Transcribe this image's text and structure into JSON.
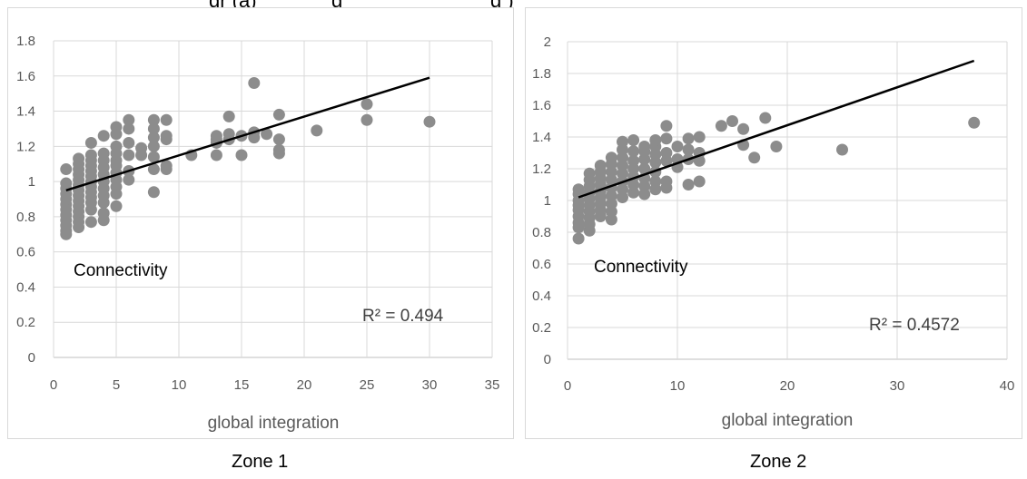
{
  "clipped_heading": {
    "left_fragment": "gr (a)",
    "right_fragment": "g",
    "right_fragment_2": "g )"
  },
  "captions": {
    "left": "Zone 1",
    "right": "Zone 2"
  },
  "colors": {
    "points": "#8c8c8c",
    "trend": "#000000",
    "grid": "#d9d9d9",
    "axis": "#bfbfbf"
  },
  "chart_data": [
    {
      "type": "scatter",
      "title": "",
      "xlabel": "global integration",
      "ylabel": "",
      "inset_label": "Connectivity",
      "r2_label": "R² = 0.494",
      "xlim": [
        0,
        35
      ],
      "ylim": [
        0,
        1.8
      ],
      "x_ticks": [
        0,
        5,
        10,
        15,
        20,
        25,
        30,
        35
      ],
      "y_ticks": [
        0,
        0.2,
        0.4,
        0.6,
        0.8,
        1,
        1.2,
        1.4,
        1.6,
        1.8
      ],
      "grid": true,
      "trendline": {
        "x": [
          1,
          30
        ],
        "y": [
          0.95,
          1.59
        ]
      },
      "points": [
        [
          1,
          0.7
        ],
        [
          1,
          0.72
        ],
        [
          1,
          0.75
        ],
        [
          1,
          0.78
        ],
        [
          1,
          0.81
        ],
        [
          1,
          0.84
        ],
        [
          1,
          0.87
        ],
        [
          1,
          0.9
        ],
        [
          1,
          0.93
        ],
        [
          1,
          0.96
        ],
        [
          1,
          0.99
        ],
        [
          1,
          1.07
        ],
        [
          2,
          0.74
        ],
        [
          2,
          0.77
        ],
        [
          2,
          0.8
        ],
        [
          2,
          0.83
        ],
        [
          2,
          0.86
        ],
        [
          2,
          0.89
        ],
        [
          2,
          0.92
        ],
        [
          2,
          0.95
        ],
        [
          2,
          0.98
        ],
        [
          2,
          1.01
        ],
        [
          2,
          1.04
        ],
        [
          2,
          1.07
        ],
        [
          2,
          1.1
        ],
        [
          2,
          1.13
        ],
        [
          3,
          0.77
        ],
        [
          3,
          0.84
        ],
        [
          3,
          0.88
        ],
        [
          3,
          0.91
        ],
        [
          3,
          0.94
        ],
        [
          3,
          0.97
        ],
        [
          3,
          1.0
        ],
        [
          3,
          1.03
        ],
        [
          3,
          1.06
        ],
        [
          3,
          1.09
        ],
        [
          3,
          1.12
        ],
        [
          3,
          1.15
        ],
        [
          3,
          1.22
        ],
        [
          4,
          0.78
        ],
        [
          4,
          0.82
        ],
        [
          4,
          0.88
        ],
        [
          4,
          0.92
        ],
        [
          4,
          0.96
        ],
        [
          4,
          1.0
        ],
        [
          4,
          1.04
        ],
        [
          4,
          1.08
        ],
        [
          4,
          1.12
        ],
        [
          4,
          1.16
        ],
        [
          4,
          1.26
        ],
        [
          5,
          0.86
        ],
        [
          5,
          0.93
        ],
        [
          5,
          0.97
        ],
        [
          5,
          1.01
        ],
        [
          5,
          1.05
        ],
        [
          5,
          1.09
        ],
        [
          5,
          1.12
        ],
        [
          5,
          1.16
        ],
        [
          5,
          1.2
        ],
        [
          5,
          1.27
        ],
        [
          5,
          1.31
        ],
        [
          6,
          1.01
        ],
        [
          6,
          1.06
        ],
        [
          6,
          1.15
        ],
        [
          6,
          1.22
        ],
        [
          6,
          1.3
        ],
        [
          6,
          1.35
        ],
        [
          7,
          1.15
        ],
        [
          7,
          1.19
        ],
        [
          8,
          0.94
        ],
        [
          8,
          1.07
        ],
        [
          8,
          1.14
        ],
        [
          8,
          1.2
        ],
        [
          8,
          1.25
        ],
        [
          8,
          1.3
        ],
        [
          8,
          1.35
        ],
        [
          9,
          1.07
        ],
        [
          9,
          1.09
        ],
        [
          9,
          1.24
        ],
        [
          9,
          1.26
        ],
        [
          9,
          1.35
        ],
        [
          11,
          1.15
        ],
        [
          13,
          1.15
        ],
        [
          13,
          1.22
        ],
        [
          13,
          1.24
        ],
        [
          13,
          1.26
        ],
        [
          14,
          1.24
        ],
        [
          14,
          1.27
        ],
        [
          14,
          1.37
        ],
        [
          15,
          1.15
        ],
        [
          15,
          1.26
        ],
        [
          16,
          1.25
        ],
        [
          16,
          1.28
        ],
        [
          16,
          1.56
        ],
        [
          17,
          1.27
        ],
        [
          18,
          1.16
        ],
        [
          18,
          1.18
        ],
        [
          18,
          1.24
        ],
        [
          18,
          1.38
        ],
        [
          21,
          1.29
        ],
        [
          25,
          1.35
        ],
        [
          25,
          1.44
        ],
        [
          30,
          1.34
        ]
      ]
    },
    {
      "type": "scatter",
      "title": "",
      "xlabel": "global integration",
      "ylabel": "",
      "inset_label": "Connectivity",
      "r2_label": "R² = 0.4572",
      "xlim": [
        0,
        40
      ],
      "ylim": [
        0,
        2
      ],
      "x_ticks": [
        0,
        10,
        20,
        30,
        40
      ],
      "y_ticks": [
        0,
        0.2,
        0.4,
        0.6,
        0.8,
        1,
        1.2,
        1.4,
        1.6,
        1.8,
        2
      ],
      "grid": true,
      "trendline": {
        "x": [
          1,
          37
        ],
        "y": [
          1.02,
          1.88
        ]
      },
      "points": [
        [
          1,
          0.76
        ],
        [
          1,
          0.83
        ],
        [
          1,
          0.86
        ],
        [
          1,
          0.9
        ],
        [
          1,
          0.94
        ],
        [
          1,
          0.97
        ],
        [
          1,
          1.0
        ],
        [
          1,
          1.04
        ],
        [
          1,
          1.07
        ],
        [
          2,
          0.81
        ],
        [
          2,
          0.85
        ],
        [
          2,
          0.89
        ],
        [
          2,
          0.93
        ],
        [
          2,
          0.97
        ],
        [
          2,
          1.01
        ],
        [
          2,
          1.05
        ],
        [
          2,
          1.09
        ],
        [
          2,
          1.13
        ],
        [
          2,
          1.17
        ],
        [
          3,
          0.9
        ],
        [
          3,
          0.94
        ],
        [
          3,
          0.98
        ],
        [
          3,
          1.02
        ],
        [
          3,
          1.06
        ],
        [
          3,
          1.1
        ],
        [
          3,
          1.14
        ],
        [
          3,
          1.18
        ],
        [
          3,
          1.22
        ],
        [
          4,
          0.88
        ],
        [
          4,
          0.93
        ],
        [
          4,
          0.98
        ],
        [
          4,
          1.03
        ],
        [
          4,
          1.08
        ],
        [
          4,
          1.13
        ],
        [
          4,
          1.18
        ],
        [
          4,
          1.23
        ],
        [
          4,
          1.27
        ],
        [
          5,
          1.02
        ],
        [
          5,
          1.07
        ],
        [
          5,
          1.12
        ],
        [
          5,
          1.17
        ],
        [
          5,
          1.22
        ],
        [
          5,
          1.27
        ],
        [
          5,
          1.32
        ],
        [
          5,
          1.37
        ],
        [
          6,
          1.05
        ],
        [
          6,
          1.1
        ],
        [
          6,
          1.15
        ],
        [
          6,
          1.2
        ],
        [
          6,
          1.25
        ],
        [
          6,
          1.31
        ],
        [
          6,
          1.38
        ],
        [
          7,
          1.04
        ],
        [
          7,
          1.09
        ],
        [
          7,
          1.14
        ],
        [
          7,
          1.2
        ],
        [
          7,
          1.26
        ],
        [
          7,
          1.31
        ],
        [
          7,
          1.34
        ],
        [
          8,
          1.07
        ],
        [
          8,
          1.12
        ],
        [
          8,
          1.18
        ],
        [
          8,
          1.24
        ],
        [
          8,
          1.29
        ],
        [
          8,
          1.34
        ],
        [
          8,
          1.38
        ],
        [
          9,
          1.08
        ],
        [
          9,
          1.12
        ],
        [
          9,
          1.25
        ],
        [
          9,
          1.3
        ],
        [
          9,
          1.39
        ],
        [
          9,
          1.47
        ],
        [
          10,
          1.21
        ],
        [
          10,
          1.26
        ],
        [
          10,
          1.34
        ],
        [
          11,
          1.1
        ],
        [
          11,
          1.26
        ],
        [
          11,
          1.32
        ],
        [
          11,
          1.39
        ],
        [
          12,
          1.12
        ],
        [
          12,
          1.25
        ],
        [
          12,
          1.3
        ],
        [
          12,
          1.4
        ],
        [
          14,
          1.47
        ],
        [
          15,
          1.5
        ],
        [
          16,
          1.35
        ],
        [
          16,
          1.45
        ],
        [
          17,
          1.27
        ],
        [
          18,
          1.52
        ],
        [
          19,
          1.34
        ],
        [
          25,
          1.32
        ],
        [
          37,
          1.49
        ]
      ]
    }
  ]
}
